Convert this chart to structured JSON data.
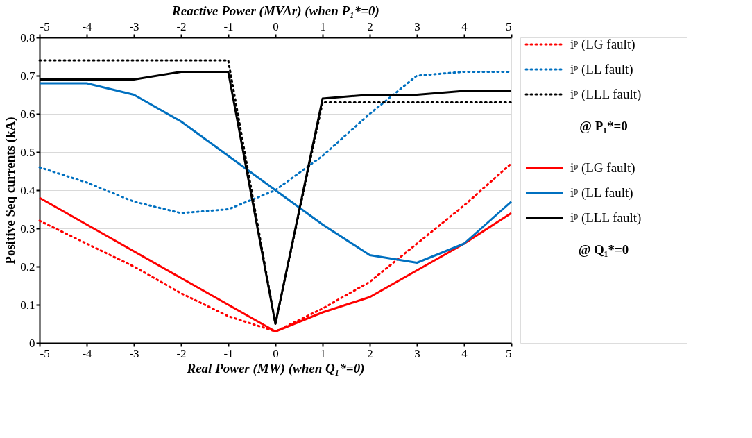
{
  "chart_data": {
    "type": "line",
    "x2label": "Reactive Power (MVAr) (when P₁*=0)",
    "xlabel": "Real Power (MW) (when Q₁*=0)",
    "ylabel": "Positive Seq currents (kA)",
    "x": [
      -5,
      -4,
      -3,
      -2,
      -1,
      0,
      1,
      2,
      3,
      4,
      5
    ],
    "xlim": [
      -5,
      5
    ],
    "xticks": [
      -5,
      -4,
      -3,
      -2,
      -1,
      0,
      1,
      2,
      3,
      4,
      5
    ],
    "x2lim": [
      -5,
      5
    ],
    "x2ticks": [
      -5,
      -4,
      -3,
      -2,
      -1,
      0,
      1,
      2,
      3,
      4,
      5
    ],
    "ylim": [
      0,
      0.8
    ],
    "yticks": [
      0,
      0.1,
      0.2,
      0.3,
      0.4,
      0.5,
      0.6,
      0.7,
      0.8
    ],
    "grid": "y",
    "legend": "right",
    "marker": "none",
    "series": [
      {
        "name": "iᵖ (LG fault)",
        "color": "#ff0000",
        "axis": "x2",
        "line_style": "dotted",
        "values": [
          0.32,
          0.26,
          0.2,
          0.13,
          0.07,
          0.03,
          0.09,
          0.16,
          0.26,
          0.36,
          0.47
        ]
      },
      {
        "name": "iᵖ (LL fault)",
        "color": "#0070c0",
        "axis": "x2",
        "line_style": "dotted",
        "values": [
          0.46,
          0.42,
          0.37,
          0.34,
          0.35,
          0.4,
          0.49,
          0.6,
          0.7,
          0.71,
          0.71
        ]
      },
      {
        "name": "iᵖ (LLL fault)",
        "color": "#000000",
        "axis": "x2",
        "line_style": "dotted",
        "values": [
          0.74,
          0.74,
          0.74,
          0.74,
          0.74,
          0.05,
          0.63,
          0.63,
          0.63,
          0.63,
          0.63
        ]
      },
      {
        "name": "iᵖ (LG fault)",
        "color": "#ff0000",
        "line_style": "solid",
        "values": [
          0.38,
          0.31,
          0.24,
          0.17,
          0.1,
          0.03,
          0.08,
          0.12,
          0.19,
          0.26,
          0.34
        ]
      },
      {
        "name": "iᵖ (LL fault)",
        "color": "#0070c0",
        "line_style": "solid",
        "values": [
          0.68,
          0.68,
          0.65,
          0.58,
          0.49,
          0.4,
          0.31,
          0.23,
          0.21,
          0.26,
          0.37
        ]
      },
      {
        "name": "iᵖ (LLL fault)",
        "color": "#000000",
        "line_style": "solid",
        "values": [
          0.69,
          0.69,
          0.69,
          0.71,
          0.71,
          0.05,
          0.64,
          0.65,
          0.65,
          0.66,
          0.66
        ]
      }
    ],
    "annotations": [
      "@ P₁*=0",
      "@ Q₁*=0"
    ]
  }
}
